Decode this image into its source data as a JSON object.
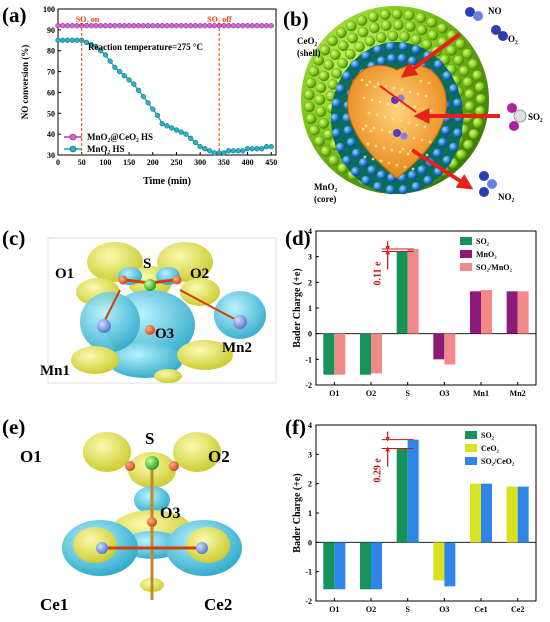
{
  "panels": {
    "a": "(a)",
    "b": "(b)",
    "c": "(c)",
    "d": "(d)",
    "e": "(e)",
    "f": "(f)"
  },
  "colors": {
    "line_hs_core_shell": "#b03ab8",
    "line_hs": "#1e9bb0",
    "marker_hs": "#25b4c8",
    "annot_red": "#ff3300",
    "so2_bar": "#17935a",
    "mno2_bar": "#8b1a7a",
    "so2_mno2_bar": "#f28a8a",
    "ceo2_bar": "#d9e21e",
    "so2_ceo2_bar": "#2f86e8",
    "shell_green": "#7ec61a",
    "sphere_blue": "#1e7bd8",
    "core_orange": "#f2a12a",
    "arrow_red": "#e8201a",
    "isosurface_yellow": "#eeee55",
    "isosurface_cyan": "#3bbfd9"
  },
  "chart_data": [
    {
      "id": "a",
      "type": "line",
      "xlabel": "Time (min)",
      "ylabel": "NO conversion (%)",
      "xlim": [
        0,
        460
      ],
      "ylim": [
        30,
        100
      ],
      "xticks": [
        0,
        50,
        100,
        150,
        200,
        250,
        300,
        350,
        400,
        450
      ],
      "yticks": [
        30,
        40,
        50,
        60,
        70,
        80,
        90,
        100
      ],
      "annotations": {
        "so2_on": "SO₂ on",
        "so2_off": "SO₂ off",
        "reaction_temperature": "Reaction temperature=275 °C"
      },
      "event_lines_x": [
        50,
        340
      ],
      "series": [
        {
          "name": "MnO₂@CeO₂ HS",
          "x": [
            0,
            10,
            20,
            30,
            40,
            50,
            60,
            70,
            80,
            90,
            100,
            110,
            120,
            130,
            140,
            150,
            160,
            170,
            180,
            190,
            200,
            210,
            220,
            230,
            240,
            250,
            260,
            270,
            280,
            290,
            300,
            310,
            320,
            330,
            340,
            350,
            360,
            370,
            380,
            390,
            400,
            410,
            420,
            430,
            440,
            450
          ],
          "y": [
            92,
            92,
            92,
            92,
            92,
            92,
            92,
            92,
            92,
            92,
            92,
            92,
            92,
            92,
            92,
            92,
            92,
            92,
            92,
            92,
            92,
            92,
            92,
            92,
            92,
            92,
            92,
            92,
            92,
            92,
            92,
            92,
            92,
            92,
            92,
            92,
            92,
            92,
            92,
            92,
            92,
            92,
            92,
            92,
            92,
            92
          ]
        },
        {
          "name": "MnO₂ HS",
          "x": [
            0,
            10,
            20,
            30,
            40,
            50,
            60,
            70,
            80,
            90,
            100,
            110,
            120,
            130,
            140,
            150,
            160,
            170,
            180,
            190,
            200,
            210,
            220,
            230,
            240,
            250,
            260,
            270,
            280,
            290,
            300,
            310,
            320,
            330,
            340,
            350,
            360,
            370,
            380,
            390,
            400,
            410,
            420,
            430,
            440,
            450
          ],
          "y": [
            85,
            85,
            85,
            85,
            85,
            85,
            84,
            83,
            82,
            80,
            78,
            75,
            72,
            70,
            68,
            66,
            64,
            61,
            58,
            55,
            52,
            49,
            45,
            44,
            43,
            42,
            41,
            40,
            38,
            36,
            34,
            33,
            32,
            31,
            31,
            31,
            32,
            32,
            32,
            32,
            33,
            33,
            33,
            33,
            34,
            34
          ]
        }
      ]
    },
    {
      "id": "d",
      "type": "bar",
      "ylabel": "Bader Charge (+e)",
      "ylim": [
        -2,
        4
      ],
      "yticks": [
        -2,
        -1,
        0,
        1,
        2,
        3,
        4
      ],
      "categories": [
        "O1",
        "O2",
        "S",
        "O3",
        "Mn1",
        "Mn2"
      ],
      "annotation": "0.11 e",
      "series": [
        {
          "name": "SO₂",
          "values": [
            -1.6,
            -1.6,
            3.2,
            null,
            null,
            null
          ]
        },
        {
          "name": "MnO₂",
          "values": [
            null,
            null,
            null,
            -1.0,
            1.65,
            1.65
          ]
        },
        {
          "name": "SO₂/MnO₂",
          "values": [
            -1.6,
            -1.55,
            3.3,
            -1.2,
            1.7,
            1.65
          ]
        }
      ]
    },
    {
      "id": "f",
      "type": "bar",
      "ylabel": "Bader Charge (+e)",
      "ylim": [
        -2,
        4
      ],
      "yticks": [
        -2,
        -1,
        0,
        1,
        2,
        3,
        4
      ],
      "categories": [
        "O1",
        "O2",
        "S",
        "O3",
        "Ce1",
        "Ce2"
      ],
      "annotation": "0.29 e",
      "series": [
        {
          "name": "SO₂",
          "values": [
            -1.6,
            -1.6,
            3.2,
            null,
            null,
            null
          ]
        },
        {
          "name": "CeO₂",
          "values": [
            null,
            null,
            null,
            -1.3,
            2.0,
            1.9
          ]
        },
        {
          "name": "SO₂/CeO₂",
          "values": [
            -1.6,
            -1.6,
            3.5,
            -1.5,
            2.0,
            1.9
          ]
        }
      ]
    }
  ],
  "schematic_b": {
    "labels": {
      "shell": "CeO₂",
      "shell_note": "(shell)",
      "core": "MnO₂",
      "core_note": "(core)",
      "no": "NO",
      "o2": "O₂",
      "so2": "SO₂",
      "no2": "NO₂"
    }
  },
  "structure_c": {
    "labels": {
      "o1": "O1",
      "s": "S",
      "o2": "O2",
      "o3": "O3",
      "mn1": "Mn1",
      "mn2": "Mn2"
    }
  },
  "structure_e": {
    "labels": {
      "o1": "O1",
      "s": "S",
      "o2": "O2",
      "o3": "O3",
      "ce1": "Ce1",
      "ce2": "Ce2"
    }
  }
}
